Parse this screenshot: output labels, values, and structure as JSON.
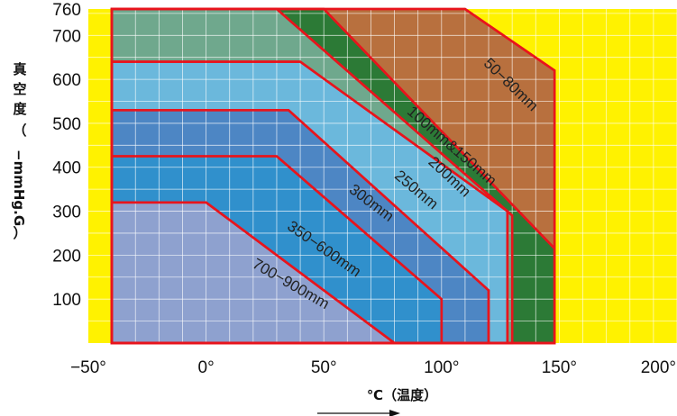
{
  "chart_data": {
    "type": "area",
    "title": "",
    "xlabel": "℃（温度）",
    "ylabel": "真空度（−mmHg.G）",
    "xlim": [
      -50,
      200
    ],
    "ylim": [
      0,
      760
    ],
    "xticks": [
      -50,
      0,
      50,
      100,
      150,
      200
    ],
    "xtick_labels": [
      "−50°",
      "0°",
      "50°",
      "100°",
      "150°",
      "200°"
    ],
    "yticks": [
      100,
      200,
      300,
      400,
      500,
      600,
      700,
      760
    ],
    "ytick_labels": [
      "100",
      "200",
      "300",
      "400",
      "500",
      "600",
      "700",
      "760"
    ],
    "grid": true,
    "background_color": "#fff200",
    "border_color": "#e8141c",
    "series": [
      {
        "name": "50−80mm",
        "color": "#b8703e",
        "points": [
          [
            -40,
            0
          ],
          [
            -40,
            760
          ],
          [
            110,
            760
          ],
          [
            148,
            620
          ],
          [
            148,
            0
          ]
        ]
      },
      {
        "name": "100mm&150mm",
        "color": "#2c7a36",
        "points": [
          [
            -40,
            0
          ],
          [
            -40,
            760
          ],
          [
            50,
            760
          ],
          [
            148,
            215
          ],
          [
            148,
            0
          ]
        ]
      },
      {
        "name": "",
        "color": "#6fa88d",
        "points": [
          [
            -40,
            0
          ],
          [
            -40,
            760
          ],
          [
            30,
            760
          ],
          [
            130,
            290
          ],
          [
            130,
            0
          ]
        ]
      },
      {
        "name": "200mm",
        "color": "#6bb8dc",
        "points": [
          [
            -40,
            0
          ],
          [
            -40,
            640
          ],
          [
            40,
            640
          ],
          [
            128,
            300
          ],
          [
            128,
            0
          ]
        ]
      },
      {
        "name": "250mm",
        "color": "#4d86c4",
        "points": [
          [
            -40,
            0
          ],
          [
            -40,
            530
          ],
          [
            35,
            530
          ],
          [
            120,
            120
          ],
          [
            120,
            0
          ]
        ]
      },
      {
        "name": "300mm",
        "color": "#3090cc",
        "points": [
          [
            -40,
            0
          ],
          [
            -40,
            425
          ],
          [
            30,
            425
          ],
          [
            100,
            100
          ],
          [
            100,
            0
          ]
        ]
      },
      {
        "name": "350−600mm",
        "color": "#3090cc",
        "points": []
      },
      {
        "name": "700−900mm",
        "color": "#8ea1cf",
        "points": [
          [
            -40,
            0
          ],
          [
            -40,
            320
          ],
          [
            0,
            320
          ],
          [
            80,
            0
          ]
        ]
      }
    ]
  }
}
